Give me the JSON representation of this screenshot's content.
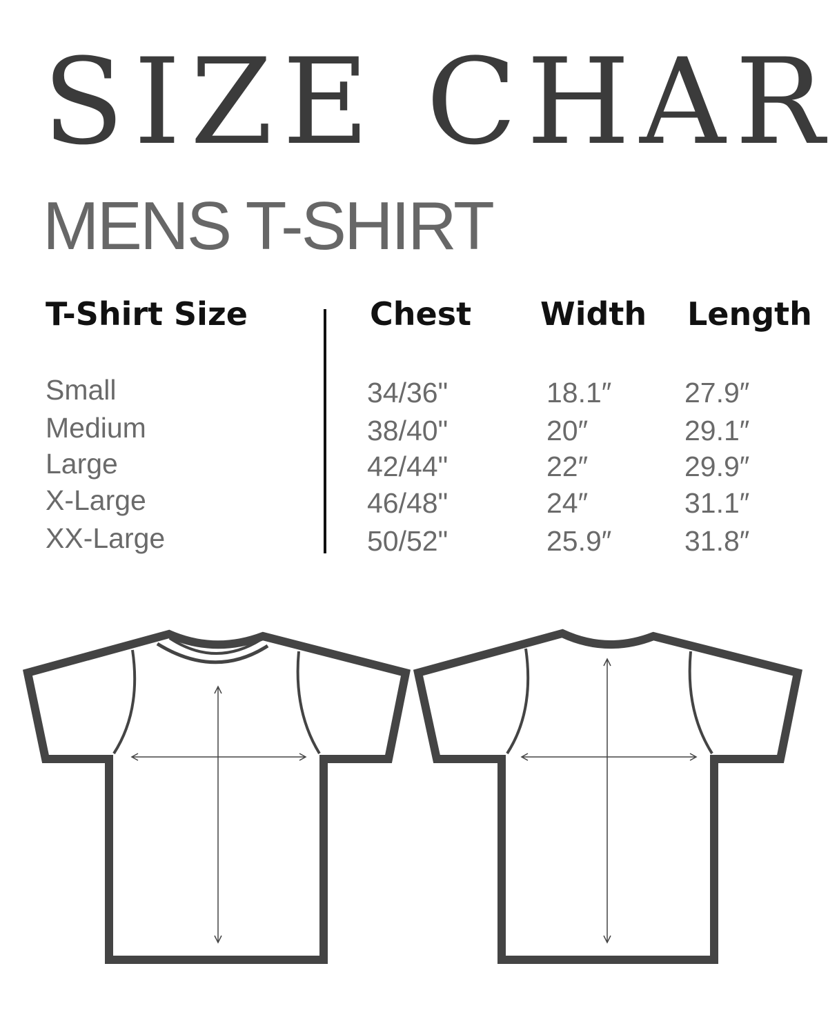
{
  "title": "SIZE CHART",
  "subtitle": "MENS T-SHIRT",
  "table": {
    "headers": [
      "T-Shirt Size",
      "Chest",
      "Width",
      "Length"
    ],
    "rows": [
      [
        "Small",
        "34/36\"",
        "18.1″",
        "27.9″"
      ],
      [
        "Medium",
        "38/40\"",
        "20″",
        "29.1″"
      ],
      [
        "Large",
        "42/44\"",
        "22″",
        "29.9″"
      ],
      [
        "X-Large",
        "46/48\"",
        "24″",
        "31.1″"
      ],
      [
        "XX-Large",
        "50/52\"",
        "25.9″",
        "31.8″"
      ]
    ]
  },
  "diagrams": [
    "t-shirt-front",
    "t-shirt-back"
  ],
  "colors": {
    "outline": "#444444",
    "title": "#3b3b3b",
    "subtitle": "#676767",
    "values": "#6a6a6a"
  }
}
